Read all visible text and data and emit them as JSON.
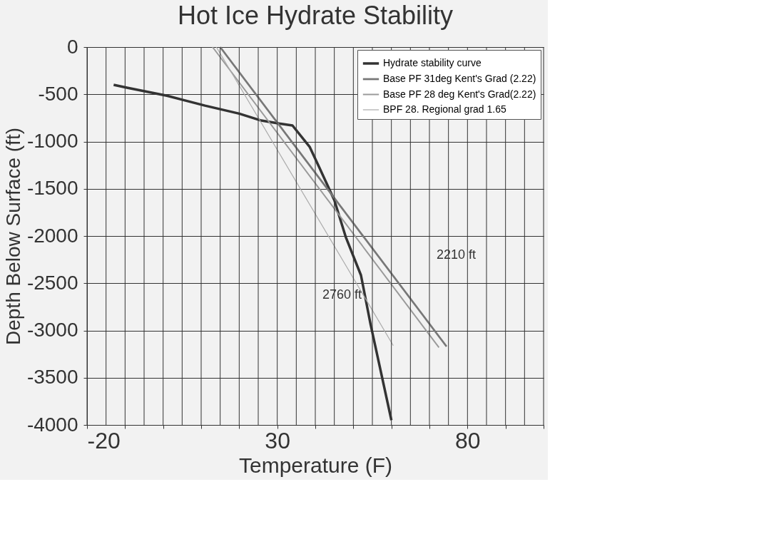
{
  "chart_data": {
    "type": "line",
    "title": "Hot Ice Hydrate Stability",
    "xlabel": "Temperature (F)",
    "ylabel": "Depth Below Surface (ft)",
    "xlim": [
      -20,
      100
    ],
    "ylim": [
      -4000,
      0
    ],
    "xticks": [
      -20,
      {
        "value": -15,
        "label": null
      },
      {
        "value": -10,
        "label": null
      },
      {
        "value": -5,
        "label": null
      },
      {
        "value": 0,
        "label": null
      },
      {
        "value": 5,
        "label": null
      },
      {
        "value": 10,
        "label": null
      },
      {
        "value": 15,
        "label": null
      },
      {
        "value": 20,
        "label": null
      },
      {
        "value": 25,
        "label": null
      },
      30,
      {
        "value": 35,
        "label": null
      },
      {
        "value": 40,
        "label": null
      },
      {
        "value": 45,
        "label": null
      },
      {
        "value": 50,
        "label": null
      },
      {
        "value": 55,
        "label": null
      },
      {
        "value": 60,
        "label": null
      },
      {
        "value": 65,
        "label": null
      },
      {
        "value": 70,
        "label": null
      },
      {
        "value": 75,
        "label": null
      },
      80,
      {
        "value": 85,
        "label": null
      },
      {
        "value": 90,
        "label": null
      },
      {
        "value": 95,
        "label": null
      },
      {
        "value": 100,
        "label": null
      }
    ],
    "yticks": [
      -4000,
      -3500,
      -3000,
      -2500,
      -2000,
      -1500,
      -1000,
      -500,
      0
    ],
    "grid": true,
    "legend": "top right",
    "marker": "none",
    "series": [
      {
        "name": "Hydrate stability curve",
        "color": "#333333",
        "x": [
          -13,
          -9.5,
          1,
          11,
          20,
          25.5,
          30.5,
          34,
          38.5,
          41,
          45,
          48,
          52,
          54.5,
          60
        ],
        "values": [
          -400,
          -430,
          -515,
          -620,
          -705,
          -775,
          -810,
          -830,
          -1055,
          -1270,
          -1620,
          -2010,
          -2415,
          -2930,
          -3950
        ]
      },
      {
        "name": "Base PF 31deg Kent's Grad (2.22)",
        "color": "#777777",
        "x": [
          15,
          74.5
        ],
        "values": [
          0,
          -3170
        ]
      },
      {
        "name": "Base PF 28 deg Kent's Grad(2.22)",
        "color": "#999999",
        "x": [
          13,
          72.5
        ],
        "values": [
          0,
          -3180
        ]
      },
      {
        "name": "BPF 28. Regional grad 1.65",
        "color": "#aaaaaa",
        "x": [
          14,
          60.5
        ],
        "values": [
          0,
          -3160
        ]
      }
    ],
    "annotations": [
      "2210 ft",
      "2760 ft"
    ]
  }
}
